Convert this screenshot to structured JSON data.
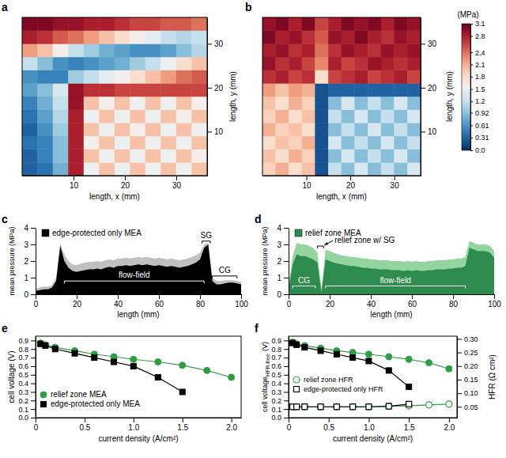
{
  "chart_data": [
    {
      "type": "heatmap",
      "panel": "a",
      "xlabel": "length, x (mm)",
      "ylabel": "length, y (mm)",
      "xlim": [
        0,
        36
      ],
      "ylim": [
        0,
        36
      ],
      "xticks": [
        10,
        20,
        30
      ],
      "yticks": [
        10,
        20,
        30
      ],
      "x_edges": [
        0,
        3,
        6,
        9,
        12,
        15,
        18,
        21,
        24,
        27,
        30,
        33,
        36
      ],
      "y_edges": [
        0,
        3,
        6,
        9,
        12,
        15,
        18,
        21,
        24,
        27,
        30,
        33,
        36
      ],
      "cells": [
        [
          0.3,
          0.4,
          0.8,
          2.8,
          1.5,
          2.0,
          1.5,
          2.0,
          1.5,
          2.0,
          1.5,
          2.0
        ],
        [
          0.3,
          0.5,
          0.9,
          2.8,
          2.0,
          1.5,
          2.0,
          1.5,
          2.0,
          1.5,
          2.0,
          1.6
        ],
        [
          0.4,
          0.5,
          0.9,
          2.8,
          1.6,
          2.0,
          1.5,
          2.0,
          1.5,
          2.0,
          1.5,
          2.0
        ],
        [
          0.3,
          0.6,
          1.0,
          2.8,
          2.0,
          1.5,
          2.0,
          1.6,
          2.0,
          1.5,
          2.0,
          1.5
        ],
        [
          0.4,
          0.7,
          1.1,
          2.8,
          1.5,
          2.0,
          1.5,
          2.0,
          1.5,
          2.0,
          1.6,
          2.0
        ],
        [
          0.5,
          0.8,
          1.2,
          2.9,
          2.0,
          1.6,
          2.0,
          1.5,
          2.0,
          1.5,
          2.0,
          1.6
        ],
        [
          0.7,
          0.9,
          1.3,
          2.9,
          2.7,
          2.7,
          2.6,
          2.6,
          2.6,
          2.6,
          2.6,
          2.6
        ],
        [
          0.6,
          0.5,
          0.5,
          1.0,
          1.2,
          1.4,
          1.6,
          1.8,
          2.0,
          2.2,
          2.4,
          2.5
        ],
        [
          1.2,
          0.9,
          0.6,
          0.5,
          0.6,
          0.7,
          0.8,
          1.0,
          1.2,
          1.5,
          1.8,
          2.0
        ],
        [
          2.2,
          2.0,
          1.6,
          1.2,
          1.0,
          0.8,
          0.7,
          0.6,
          0.6,
          0.7,
          0.9,
          1.1
        ],
        [
          2.8,
          2.7,
          2.5,
          2.4,
          2.2,
          2.0,
          1.8,
          1.6,
          1.4,
          1.2,
          1.1,
          1.2
        ],
        [
          3.0,
          3.0,
          2.9,
          2.9,
          2.8,
          2.8,
          2.7,
          2.6,
          2.6,
          2.5,
          2.5,
          2.4
        ]
      ]
    },
    {
      "type": "heatmap",
      "panel": "b",
      "xlabel": "length, x (mm)",
      "ylabel": "length, y (mm)",
      "xlim": [
        0,
        36
      ],
      "ylim": [
        0,
        36
      ],
      "xticks": [
        10,
        20,
        30
      ],
      "yticks": [
        10,
        20,
        30
      ],
      "x_edges": [
        0,
        3,
        6,
        9,
        12,
        15,
        18,
        21,
        24,
        27,
        30,
        33,
        36
      ],
      "y_edges": [
        0,
        3,
        6,
        9,
        12,
        15,
        18,
        21,
        24,
        27,
        30,
        33,
        36
      ],
      "cells": [
        [
          1.9,
          2.1,
          1.8,
          2.0,
          0.2,
          1.2,
          0.9,
          1.3,
          0.9,
          1.2,
          0.9,
          1.3
        ],
        [
          2.0,
          1.8,
          2.1,
          1.9,
          0.2,
          0.9,
          1.3,
          0.9,
          1.2,
          0.9,
          1.3,
          0.9
        ],
        [
          1.8,
          2.0,
          1.9,
          2.1,
          0.2,
          1.3,
          0.9,
          1.2,
          0.9,
          1.3,
          0.9,
          1.2
        ],
        [
          2.1,
          1.9,
          2.0,
          1.8,
          0.2,
          0.9,
          1.2,
          0.9,
          1.3,
          0.9,
          1.2,
          0.9
        ],
        [
          1.9,
          2.1,
          1.8,
          2.0,
          0.2,
          1.2,
          0.9,
          1.3,
          0.9,
          1.2,
          0.9,
          1.3
        ],
        [
          2.0,
          1.8,
          2.1,
          1.9,
          0.2,
          0.9,
          1.3,
          0.9,
          1.2,
          0.9,
          1.3,
          0.9
        ],
        [
          2.2,
          2.0,
          2.2,
          2.1,
          0.2,
          0.3,
          0.3,
          0.3,
          0.3,
          0.3,
          0.3,
          0.3
        ],
        [
          2.7,
          2.8,
          2.6,
          2.7,
          1.8,
          2.6,
          2.7,
          2.8,
          2.6,
          2.7,
          2.8,
          2.6
        ],
        [
          2.9,
          2.7,
          2.8,
          2.6,
          2.3,
          2.8,
          2.6,
          2.7,
          2.9,
          2.8,
          2.7,
          2.8
        ],
        [
          2.8,
          2.9,
          2.7,
          2.8,
          2.4,
          2.7,
          2.9,
          2.8,
          2.7,
          2.9,
          2.8,
          2.9
        ],
        [
          3.0,
          2.8,
          2.9,
          2.7,
          2.5,
          2.9,
          2.8,
          3.0,
          2.8,
          2.7,
          2.9,
          2.8
        ],
        [
          2.9,
          3.0,
          2.8,
          3.0,
          2.6,
          2.8,
          3.0,
          2.9,
          3.0,
          2.8,
          3.0,
          2.9
        ]
      ],
      "colorbar": {
        "label": "(MPa)",
        "range": [
          0,
          3.1
        ],
        "ticks": [
          {
            "value": 0,
            "label": "0.0"
          },
          0.31,
          0.61,
          0.92,
          1.2,
          1.5,
          1.8,
          2.1,
          2.4,
          2.8,
          3.1
        ]
      }
    },
    {
      "type": "area",
      "panel": "c",
      "xlabel": "length (mm)",
      "ylabel": "mean pressure (MPa)",
      "xlim": [
        0,
        100
      ],
      "ylim": [
        0,
        4
      ],
      "xticks": [
        0,
        20,
        40,
        60,
        80,
        100
      ],
      "yticks": [
        0,
        1,
        2,
        3,
        4
      ],
      "legend": "upper left",
      "x": [
        0,
        2,
        4,
        6,
        8,
        10,
        12,
        14,
        16,
        18,
        20,
        22,
        24,
        26,
        28,
        30,
        32,
        34,
        36,
        38,
        40,
        42,
        44,
        46,
        48,
        50,
        52,
        54,
        56,
        58,
        60,
        62,
        64,
        66,
        68,
        70,
        72,
        74,
        76,
        78,
        80,
        82,
        84,
        86,
        88,
        90,
        92,
        94,
        96,
        98,
        100
      ],
      "series": [
        {
          "name": "edge-protected only MEA",
          "color": "#000000",
          "values": [
            0.2,
            0.25,
            0.3,
            0.3,
            0.4,
            0.8,
            2.9,
            2.0,
            1.6,
            1.4,
            1.35,
            1.4,
            1.45,
            1.5,
            1.5,
            1.55,
            1.5,
            1.6,
            1.65,
            1.6,
            1.7,
            1.7,
            1.75,
            1.7,
            1.75,
            1.8,
            1.75,
            1.8,
            1.75,
            1.7,
            1.75,
            1.7,
            1.65,
            1.7,
            1.65,
            1.6,
            1.65,
            1.7,
            1.8,
            1.9,
            2.1,
            2.8,
            3.0,
            0.8,
            0.6,
            0.6,
            0.65,
            0.7,
            0.7,
            0.65,
            0.6
          ]
        },
        {
          "color": "#c0c0c0",
          "values": [
            0.35,
            0.4,
            0.45,
            0.45,
            0.55,
            1.0,
            3.05,
            2.4,
            2.0,
            1.8,
            1.75,
            1.85,
            1.9,
            1.95,
            1.95,
            2.0,
            1.95,
            2.05,
            2.1,
            2.05,
            2.15,
            2.15,
            2.2,
            2.15,
            2.2,
            2.25,
            2.2,
            2.25,
            2.2,
            2.15,
            2.2,
            2.15,
            2.1,
            2.15,
            2.1,
            2.05,
            2.1,
            2.15,
            2.25,
            2.35,
            2.5,
            3.0,
            3.1,
            1.0,
            0.8,
            0.8,
            0.85,
            0.85,
            0.85,
            0.8,
            0.75
          ]
        }
      ],
      "annotations": [
        {
          "text": "SG",
          "type": "bracket",
          "x": [
            81,
            85
          ],
          "y": 3.2,
          "color": "#000000"
        },
        {
          "text": "flow-field",
          "type": "bracket",
          "x": [
            14,
            82
          ],
          "y": 0.8,
          "color": "#ffffff"
        },
        {
          "text": "CG",
          "type": "bracket",
          "x": [
            86,
            98
          ],
          "y": 1.1,
          "color": "#000000"
        }
      ]
    },
    {
      "type": "area",
      "panel": "d",
      "xlabel": "length (mm)",
      "ylabel": "mean pressure (MPa)",
      "xlim": [
        0,
        100
      ],
      "ylim": [
        0,
        4
      ],
      "xticks": [
        0,
        20,
        40,
        60,
        80,
        100
      ],
      "yticks": [
        0,
        1,
        2,
        3,
        4
      ],
      "legend": "upper left",
      "x": [
        0,
        2,
        4,
        6,
        8,
        10,
        12,
        14,
        16,
        18,
        20,
        22,
        24,
        26,
        28,
        30,
        32,
        34,
        36,
        38,
        40,
        42,
        44,
        46,
        48,
        50,
        52,
        54,
        56,
        58,
        60,
        62,
        64,
        66,
        68,
        70,
        72,
        74,
        76,
        78,
        80,
        82,
        84,
        86,
        88,
        90,
        92,
        94,
        96,
        98,
        100
      ],
      "series": [
        {
          "name": "relief zone MEA",
          "color": "#2e8b4e",
          "values": [
            0.3,
            1.8,
            2.4,
            2.3,
            2.3,
            2.2,
            2.1,
            1.9,
            0.1,
            2.1,
            2.0,
            1.9,
            1.85,
            1.8,
            1.75,
            1.7,
            1.7,
            1.65,
            1.6,
            1.6,
            1.55,
            1.55,
            1.5,
            1.5,
            1.5,
            1.45,
            1.45,
            1.45,
            1.4,
            1.45,
            1.4,
            1.45,
            1.4,
            1.4,
            1.45,
            1.45,
            1.5,
            1.5,
            1.5,
            1.55,
            1.55,
            1.6,
            1.6,
            1.7,
            2.8,
            2.7,
            2.6,
            2.6,
            2.6,
            2.5,
            2.2
          ]
        },
        {
          "color": "#93d4a1",
          "values": [
            0.5,
            2.3,
            3.1,
            3.0,
            3.0,
            2.9,
            2.8,
            2.5,
            0.3,
            2.7,
            2.6,
            2.5,
            2.4,
            2.35,
            2.3,
            2.25,
            2.25,
            2.2,
            2.15,
            2.15,
            2.1,
            2.1,
            2.05,
            2.05,
            2.05,
            2.0,
            2.0,
            2.0,
            1.95,
            2.0,
            1.95,
            2.0,
            1.95,
            1.95,
            2.0,
            2.0,
            2.05,
            2.05,
            2.05,
            2.1,
            2.1,
            2.15,
            2.15,
            2.25,
            3.2,
            3.1,
            3.0,
            3.0,
            3.0,
            2.9,
            2.6
          ]
        }
      ],
      "annotations": [
        {
          "text": "relief zone w/ SG",
          "type": "arrow",
          "x": [
            14,
            17
          ],
          "y": 2.9,
          "color": "#000000"
        },
        {
          "text": "CG",
          "type": "bracket",
          "x": [
            2,
            13
          ],
          "y": 0.5,
          "color": "#ffffff"
        },
        {
          "text": "flow-field",
          "type": "bracket",
          "x": [
            18,
            86
          ],
          "y": 0.5,
          "color": "#ffffff"
        }
      ]
    },
    {
      "type": "line",
      "panel": "e",
      "xlabel": "current density (A/cm²)",
      "ylabel": "cell voltage (V)",
      "xlim": [
        0,
        2.1
      ],
      "ylim": [
        0,
        0.95
      ],
      "xticks": [
        0,
        0.5,
        {
          "value": 1,
          "label": "1.0"
        },
        1.5,
        {
          "value": 2,
          "label": "2.0"
        }
      ],
      "yticks": [
        {
          "value": 0,
          "label": "0.0"
        },
        0.1,
        0.2,
        0.3,
        0.4,
        0.5,
        0.6,
        0.7,
        0.8,
        0.9
      ],
      "legend": "lower left",
      "x": [
        0.05,
        0.1,
        0.2,
        0.4,
        0.6,
        0.8,
        1.0,
        1.25,
        1.5,
        1.75,
        2.0
      ],
      "series": [
        {
          "name": "relief zone MEA",
          "color": "#2e9e44",
          "marker": "circle",
          "values": [
            0.87,
            0.85,
            0.82,
            0.78,
            0.74,
            0.71,
            0.68,
            0.65,
            0.61,
            0.55,
            0.47
          ]
        },
        {
          "name": "edge-protected only MEA",
          "color": "#000000",
          "marker": "square",
          "values": [
            0.86,
            0.84,
            0.8,
            0.75,
            0.7,
            0.65,
            0.6,
            0.47,
            0.3,
            null,
            null
          ]
        }
      ]
    },
    {
      "type": "line",
      "panel": "f",
      "xlabel": "current density (A/cm²)",
      "ylabel": "cell voltage",
      "ylabel_subscript": "HFR-free",
      "ylabel_suffix": "(V)",
      "y2label": "HFR (Ω cm²)",
      "xlim": [
        0,
        2.1
      ],
      "ylim": [
        0,
        0.95
      ],
      "y2lim": [
        0.01,
        0.31
      ],
      "xticks": [
        0,
        0.5,
        {
          "value": 1,
          "label": "1.0"
        },
        1.5,
        {
          "value": 2,
          "label": "2.0"
        }
      ],
      "yticks": [
        {
          "value": 0,
          "label": "0.0"
        },
        0.1,
        0.2,
        0.3,
        0.4,
        0.5,
        0.6,
        0.7,
        0.8,
        0.9
      ],
      "y2ticks": [
        0.05,
        {
          "value": 0.1,
          "label": "0.10"
        },
        0.15,
        {
          "value": 0.2,
          "label": "0.20"
        },
        0.25,
        {
          "value": 0.3,
          "label": "0.30"
        }
      ],
      "legend": "lower left",
      "x": [
        0.05,
        0.1,
        0.2,
        0.4,
        0.6,
        0.8,
        1.0,
        1.25,
        1.5,
        1.75,
        2.0
      ],
      "series": [
        {
          "color": "#2e9e44",
          "marker": "circle",
          "values": [
            0.88,
            0.86,
            0.84,
            0.81,
            0.78,
            0.76,
            0.74,
            0.71,
            0.68,
            0.64,
            0.57
          ]
        },
        {
          "color": "#000000",
          "marker": "square",
          "values": [
            0.87,
            0.85,
            0.82,
            0.78,
            0.74,
            0.7,
            0.66,
            0.55,
            0.36,
            null,
            null
          ]
        },
        {
          "name": "relief zone HFR",
          "color": "#2e9e44",
          "marker": "open-circle",
          "axis": "y2",
          "values": [
            0.05,
            0.05,
            0.05,
            0.05,
            0.05,
            0.05,
            0.05,
            0.052,
            0.054,
            0.057,
            0.06
          ]
        },
        {
          "name": "edge-protected only HFR",
          "color": "#000000",
          "marker": "open-square",
          "axis": "y2",
          "values": [
            0.05,
            0.05,
            0.05,
            0.05,
            0.05,
            0.05,
            0.05,
            0.052,
            0.06,
            null,
            null
          ]
        }
      ]
    }
  ]
}
